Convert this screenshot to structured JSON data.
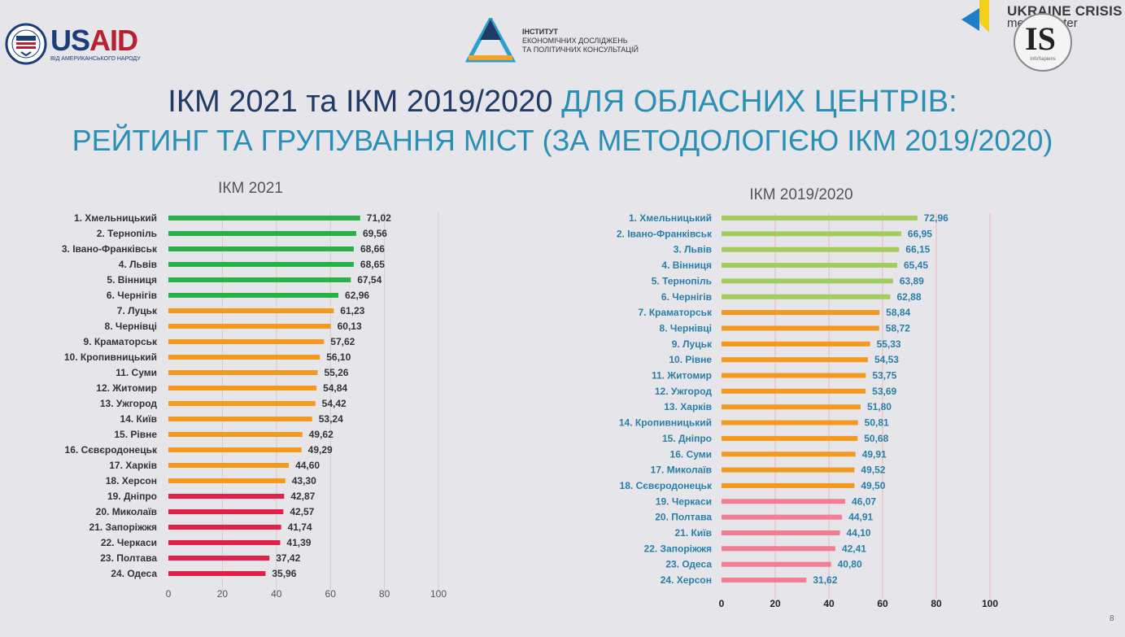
{
  "logos": {
    "usaid_us": "US",
    "usaid_aid": "AID",
    "usaid_sub": "ВІД АМЕРИКАНСЬКОГО НАРОДУ",
    "institute_line1": "ІНСТИТУТ",
    "institute_line2": "ЕКОНОМІЧНИХ ДОСЛІДЖЕНЬ",
    "institute_line3": "ТА ПОЛІТИЧНИХ КОНСУЛЬТАЦІЙ",
    "ucmc_line1": "UKRAINE CRISIS",
    "ucmc_line2": "media center",
    "is_mark": "IS",
    "is_sub": "InfoSapiens"
  },
  "title": {
    "part1": "ІКМ 2021 та ІКМ 2019/2020 ",
    "part2": "ДЛЯ ОБЛАСНИХ ЦЕНТРІВ:",
    "line2": "РЕЙТИНГ ТА ГРУПУВАННЯ МІСТ (ЗА МЕТОДОЛОГІЄЮ ІКМ 2019/2020)"
  },
  "page_number": "8",
  "chart_data": [
    {
      "type": "bar",
      "orientation": "horizontal",
      "title": "ІКМ 2021",
      "xlim": [
        0,
        100
      ],
      "xticks": [
        0,
        20,
        40,
        60,
        80,
        100
      ],
      "grid": true,
      "categories": [
        "1. Хмельницький",
        "2. Тернопіль",
        "3. Івано-Франківськ",
        "4. Львів",
        "5. Вінниця",
        "6. Чернігів",
        "7. Луцьк",
        "8. Чернівці",
        "9. Краматорськ",
        "10. Кропивницький",
        "11. Суми",
        "12. Житомир",
        "13. Ужгород",
        "14. Київ",
        "15. Рівне",
        "16. Сєвєродонецьк",
        "17. Харків",
        "18. Херсон",
        "19. Дніпро",
        "20. Миколаїв",
        "21. Запоріжжя",
        "22. Черкаси",
        "23. Полтава",
        "24. Одеса"
      ],
      "values": [
        71.02,
        69.56,
        68.66,
        68.65,
        67.54,
        62.96,
        61.23,
        60.13,
        57.62,
        56.1,
        55.26,
        54.84,
        54.42,
        53.24,
        49.62,
        49.29,
        44.6,
        43.3,
        42.87,
        42.57,
        41.74,
        41.39,
        37.42,
        35.96
      ],
      "value_labels": [
        "71,02",
        "69,56",
        "68,66",
        "68,65",
        "67,54",
        "62,96",
        "61,23",
        "60,13",
        "57,62",
        "56,10",
        "55,26",
        "54,84",
        "54,42",
        "53,24",
        "49,62",
        "49,29",
        "44,60",
        "43,30",
        "42,87",
        "42,57",
        "41,74",
        "41,39",
        "37,42",
        "35,96"
      ],
      "groups": [
        1,
        1,
        1,
        1,
        1,
        1,
        2,
        2,
        2,
        2,
        2,
        2,
        2,
        2,
        2,
        2,
        2,
        2,
        3,
        3,
        3,
        3,
        3,
        3
      ],
      "group_colors": {
        "1": "#27b146",
        "2": "#f39a1e",
        "3": "#e1204a"
      }
    },
    {
      "type": "bar",
      "orientation": "horizontal",
      "title": "ІКМ 2019/2020",
      "xlim": [
        0,
        100
      ],
      "xticks": [
        0,
        20,
        40,
        60,
        80,
        100
      ],
      "grid": true,
      "categories": [
        "1. Хмельницький",
        "2. Івано-Франківськ",
        "3. Львів",
        "4. Вінниця",
        "5. Тернопіль",
        "6. Чернігів",
        "7. Краматорськ",
        "8. Чернівці",
        "9. Луцьк",
        "10. Рівне",
        "11. Житомир",
        "12. Ужгород",
        "13. Харків",
        "14. Кропивницький",
        "15. Дніпро",
        "16. Суми",
        "17. Миколаїв",
        "18. Сєвєродонецьк",
        "19. Черкаси",
        "20. Полтава",
        "21. Київ",
        "22. Запоріжжя",
        "23. Одеса",
        "24. Херсон"
      ],
      "values": [
        72.96,
        66.95,
        66.15,
        65.45,
        63.89,
        62.88,
        58.84,
        58.72,
        55.33,
        54.53,
        53.75,
        53.69,
        51.8,
        50.81,
        50.68,
        49.91,
        49.52,
        49.5,
        46.07,
        44.91,
        44.1,
        42.41,
        40.8,
        31.62
      ],
      "value_labels": [
        "72,96",
        "66,95",
        "66,15",
        "65,45",
        "63,89",
        "62,88",
        "58,84",
        "58,72",
        "55,33",
        "54,53",
        "53,75",
        "53,69",
        "51,80",
        "50,81",
        "50,68",
        "49,91",
        "49,52",
        "49,50",
        "46,07",
        "44,91",
        "44,10",
        "42,41",
        "40,80",
        "31,62"
      ],
      "groups": [
        1,
        1,
        1,
        1,
        1,
        1,
        2,
        2,
        2,
        2,
        2,
        2,
        2,
        2,
        2,
        2,
        2,
        2,
        3,
        3,
        3,
        3,
        3,
        3
      ],
      "group_colors": {
        "1": "#a2cc5c",
        "2": "#f39a1e",
        "3": "#f27c92"
      }
    }
  ]
}
